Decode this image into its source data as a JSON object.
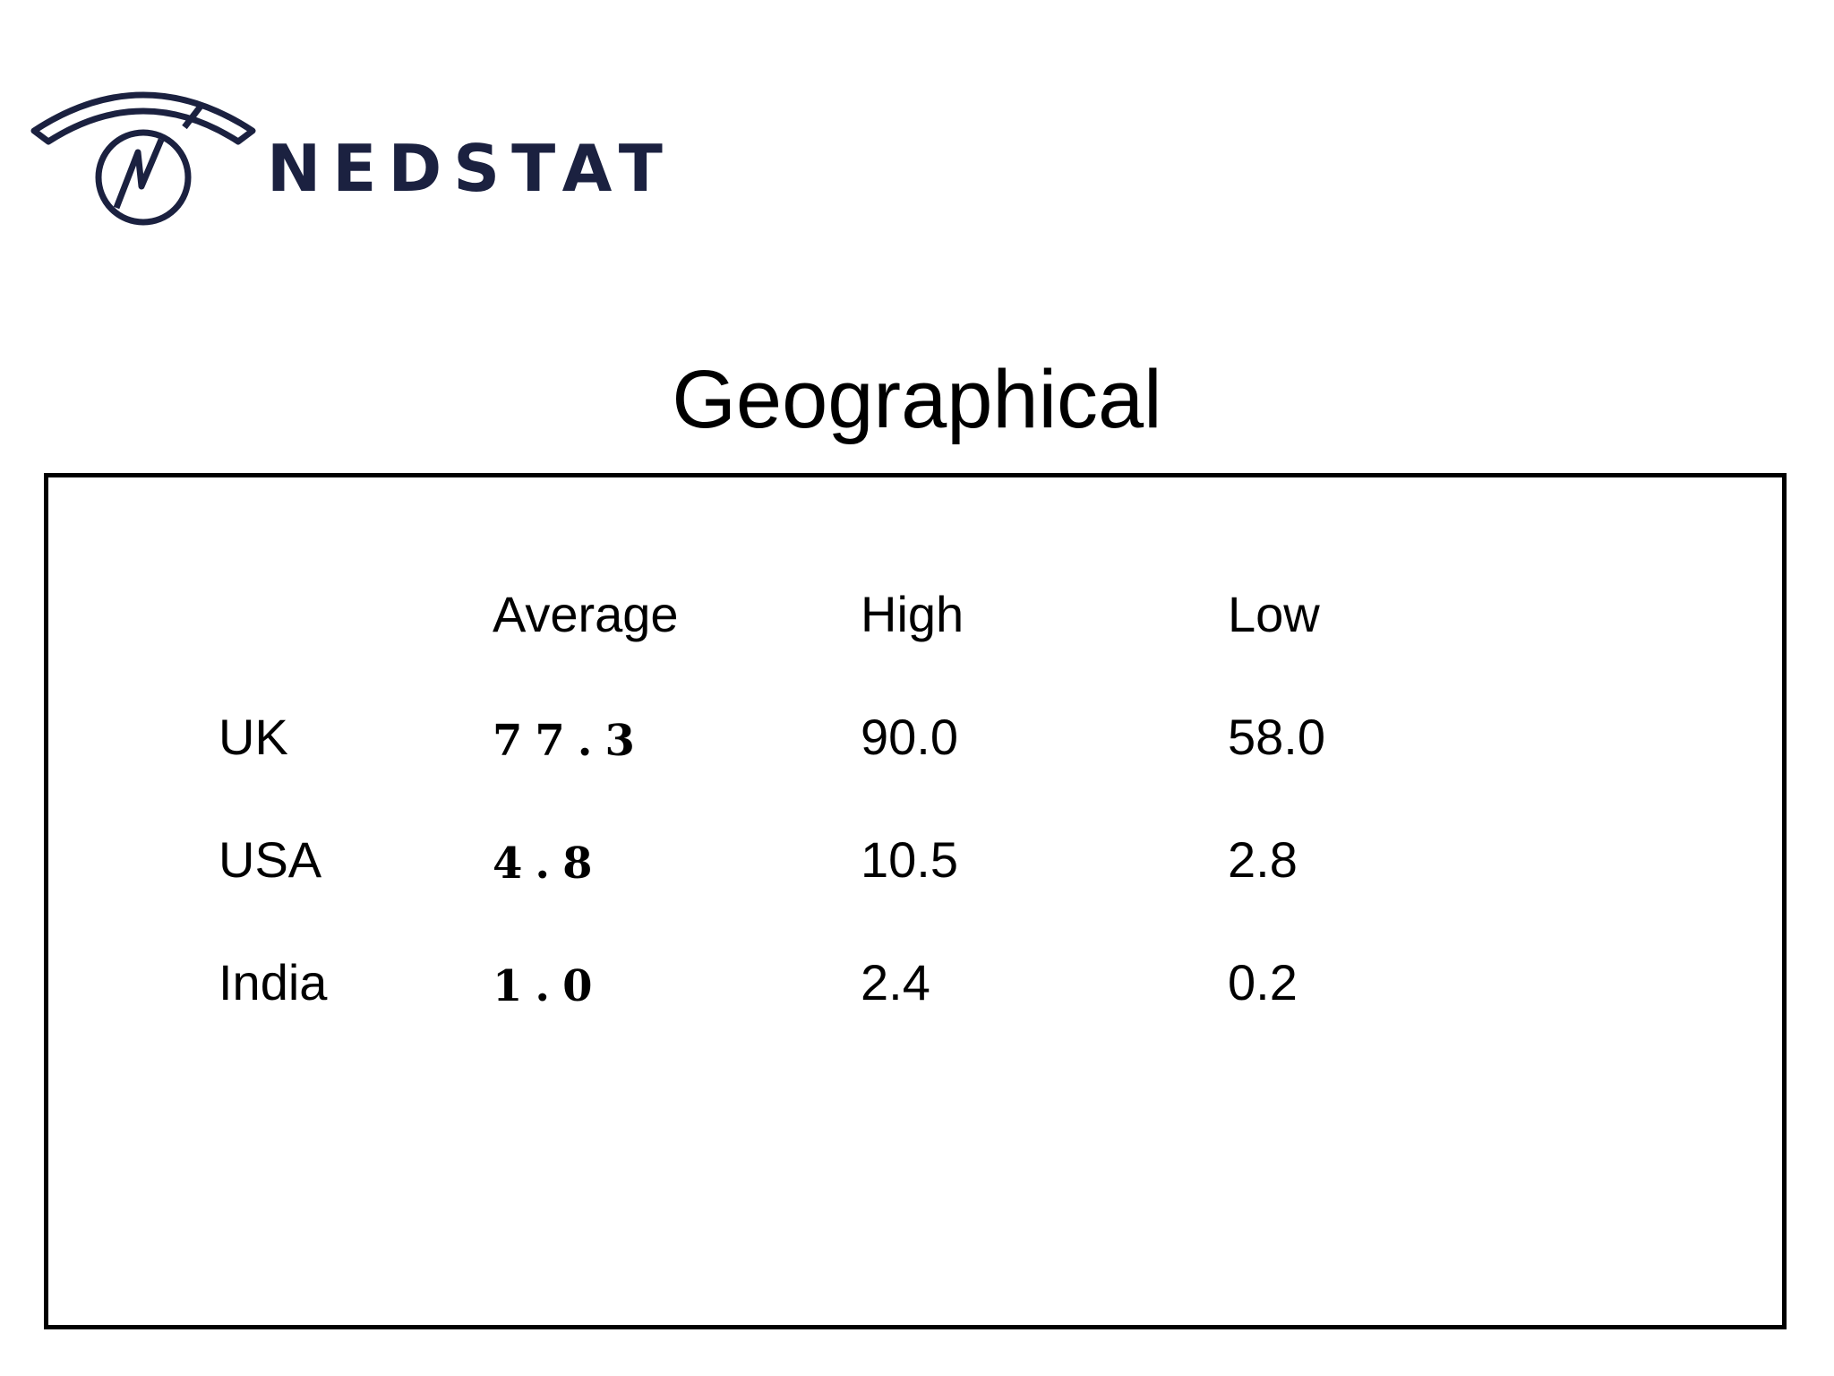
{
  "logo": {
    "text": "NEDSTAT",
    "icon": "nedstat-meter-icon",
    "color": "#1b2140"
  },
  "page": {
    "title": "Geographical"
  },
  "table": {
    "headers": [
      "Average",
      "High",
      "Low"
    ],
    "rows": [
      {
        "label": "UK",
        "average": "77.3",
        "high": "90.0",
        "low": "58.0"
      },
      {
        "label": "USA",
        "average": "4.8",
        "high": "10.5",
        "low": "2.8"
      },
      {
        "label": "India",
        "average": "1.0",
        "high": "2.4",
        "low": "0.2"
      }
    ]
  }
}
